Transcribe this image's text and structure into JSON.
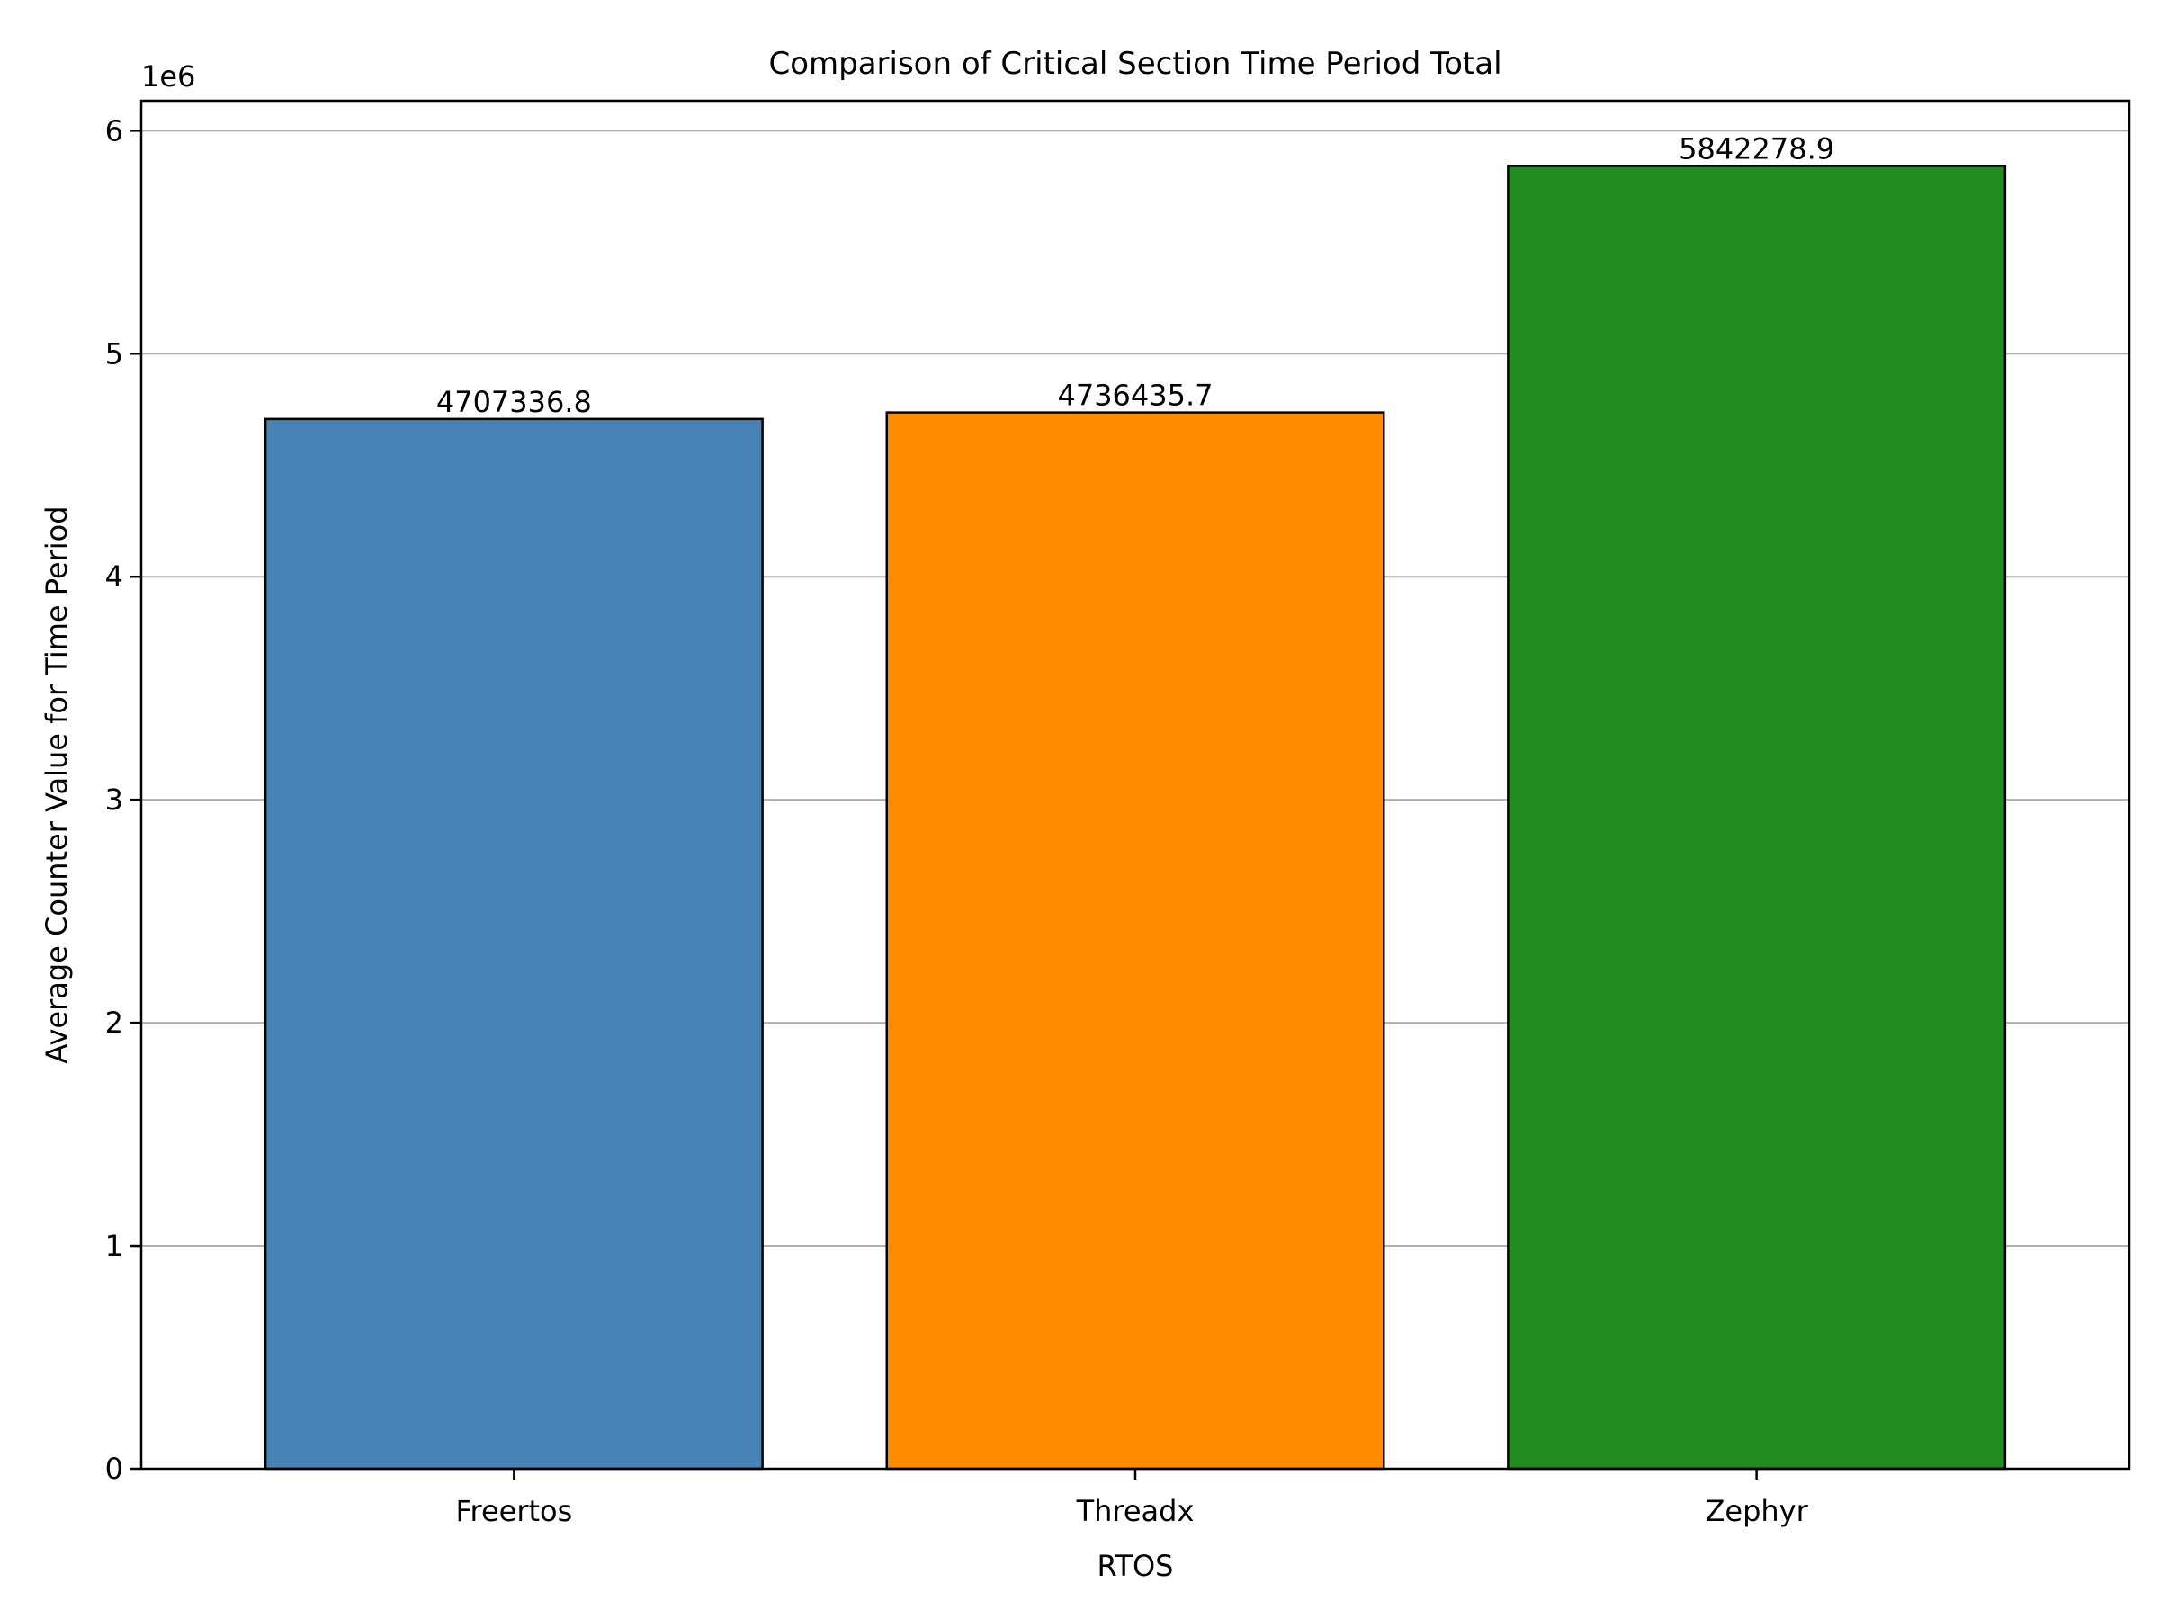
{
  "chart_data": {
    "type": "bar",
    "title": "Comparison of Critical Section Time Period Total",
    "xlabel": "RTOS",
    "ylabel": "Average Counter Value for Time Period",
    "y_offset_label": "1e6",
    "y_scale": 1000000,
    "categories": [
      "Freertos",
      "Threadx",
      "Zephyr"
    ],
    "values": [
      4707336.8,
      4736435.7,
      5842278.9
    ],
    "data_labels": [
      "4707336.8",
      "4736435.7",
      "5842278.9"
    ],
    "colors": [
      "#4682b4",
      "#ff8c00",
      "#228b22"
    ],
    "ylim": [
      0,
      6134392.8
    ],
    "yticks": [
      0,
      1000000,
      2000000,
      3000000,
      4000000,
      5000000,
      6000000
    ],
    "ytick_labels": [
      "0",
      "1",
      "2",
      "3",
      "4",
      "5",
      "6"
    ],
    "grid": "y",
    "legend": "none"
  }
}
